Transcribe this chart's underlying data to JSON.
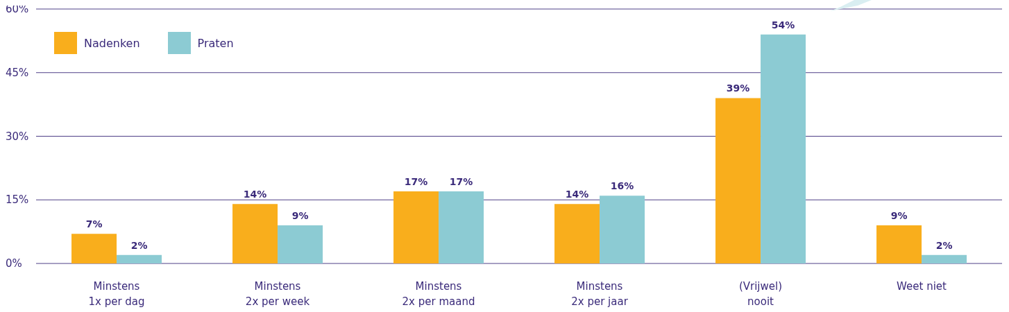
{
  "chart_data": {
    "type": "bar",
    "categories": [
      "Minstens\n1x per dag",
      "Minstens\n2x per week",
      "Minstens\n2x per maand",
      "Minstens\n2x per jaar",
      "(Vrijwel)\nnooit",
      "Weet niet"
    ],
    "series": [
      {
        "name": "Nadenken",
        "color": "#f9ae1c",
        "values": [
          7,
          14,
          17,
          14,
          39,
          9
        ]
      },
      {
        "name": "Praten",
        "color": "#8ccbd3",
        "values": [
          2,
          9,
          17,
          16,
          54,
          2
        ]
      }
    ],
    "ylim": [
      0,
      60
    ],
    "yticks": [
      {
        "value": 0,
        "label": "0%"
      },
      {
        "value": 15,
        "label": "15%"
      },
      {
        "value": 30,
        "label": "30%"
      },
      {
        "value": 45,
        "label": "45%"
      },
      {
        "value": 60,
        "label": "60%"
      }
    ],
    "grid": "y",
    "legend": "top left",
    "value_labels": [
      [
        "7%",
        "14%",
        "17%",
        "14%",
        "39%",
        "9%"
      ],
      [
        "2%",
        "9%",
        "17%",
        "16%",
        "54%",
        "2%"
      ]
    ]
  }
}
